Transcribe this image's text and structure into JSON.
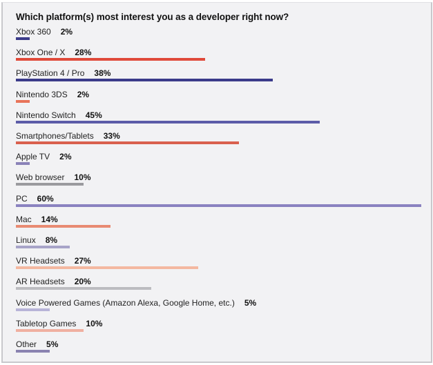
{
  "chart_data": {
    "type": "bar",
    "orientation": "horizontal",
    "title": "Which platform(s) most interest you as a developer right now?",
    "xlabel": "",
    "ylabel": "",
    "xlim": [
      0,
      60
    ],
    "grid": false,
    "categories": [
      "Xbox 360",
      "Xbox One / X",
      "PlayStation 4 / Pro",
      "Nintendo 3DS",
      "Nintendo Switch",
      "Smartphones/Tablets",
      "Apple TV",
      "Web browser",
      "PC",
      "Mac",
      "Linux",
      "VR Headsets",
      "AR Headsets",
      "Voice Powered Games (Amazon Alexa, Google Home, etc.)",
      "Tabletop Games",
      "Other"
    ],
    "values": [
      2,
      28,
      38,
      2,
      45,
      33,
      2,
      10,
      60,
      14,
      8,
      27,
      20,
      5,
      10,
      5
    ],
    "labels": [
      "2%",
      "28%",
      "38%",
      "2%",
      "45%",
      "33%",
      "2%",
      "10%",
      "60%",
      "14%",
      "8%",
      "27%",
      "20%",
      "5%",
      "10%",
      "5%"
    ],
    "colors": [
      "#3b3b8a",
      "#e04a3a",
      "#3b3b8a",
      "#e8745a",
      "#5c5ca8",
      "#d9604e",
      "#8a82b8",
      "#9a9a9e",
      "#8a82c0",
      "#e88a72",
      "#a8a4c8",
      "#f4b8a0",
      "#bcbcc0",
      "#b8b4d8",
      "#f0b0a0",
      "#8a82b0"
    ]
  }
}
